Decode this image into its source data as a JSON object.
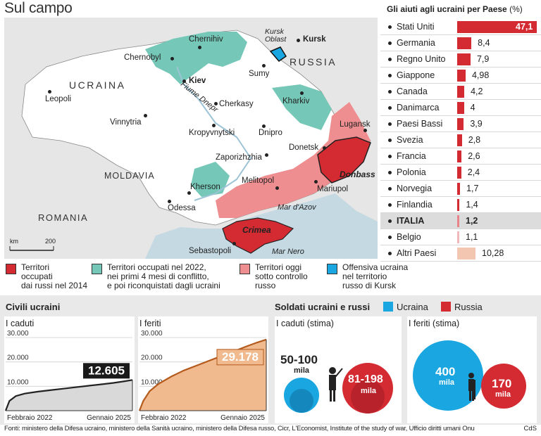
{
  "title": "Sul campo",
  "map": {
    "countries": {
      "ukraine": "UCRAINA",
      "russia": "RUSSIA",
      "moldova": "MOLDAVIA",
      "romania": "ROMANIA"
    },
    "cities": {
      "chernihiv": "Chernihiv",
      "chernobyl": "Chernobyl",
      "kiev": "Kiev",
      "sumy": "Sumy",
      "kursk": "Kursk",
      "kursk_oblast": "Kursk\nOblast",
      "kharkiv": "Kharkiv",
      "cherkasy": "Cherkasy",
      "leopoli": "Leopoli",
      "vinnytria": "Vinnytria",
      "kropyvnytski": "Kropyvnytski",
      "dnipro": "Dnipro",
      "donetsk": "Donetsk",
      "lugansk": "Lugansk",
      "zaporizhzhia": "Zaporizhzhia",
      "melitopol": "Melitopol",
      "mariupol": "Mariupol",
      "kherson": "Kherson",
      "odessa": "Odessa",
      "sebastopoli": "Sebastopoli"
    },
    "labels": {
      "dnepr": "Fiume Dnepr",
      "azov": "Mar d'Azov",
      "black_sea": "Mar Nero",
      "crimea": "Crimea",
      "donbass": "Donbass"
    },
    "scale": {
      "left": "km",
      "right": "200"
    },
    "colors": {
      "occupied_2014": "#d42b33",
      "occupied_2022": "#75c8b8",
      "controlled_now": "#ef8e90",
      "offensive": "#1aa6e0"
    }
  },
  "legend": [
    {
      "label": "Territori\noccupati\ndai russi nel 2014",
      "color": "#d42b33"
    },
    {
      "label": "Territori occupati nel 2022,\nnei primi 4 mesi di conflitto,\ne poi riconquistati dagli ucraini",
      "color": "#75c8b8"
    },
    {
      "label": "Territori oggi\nsotto controllo\nrusso",
      "color": "#ef8e90"
    },
    {
      "label": "Offensiva ucraina\nnel territorio\nrusso di Kursk",
      "color": "#1aa6e0"
    }
  ],
  "chart_data": [
    {
      "type": "bar",
      "title": "Gli aiuti agli ucraini per Paese",
      "unit": "(%)",
      "categories": [
        "Stati Uniti",
        "Germania",
        "Regno Unito",
        "Giappone",
        "Canada",
        "Danimarca",
        "Paesi Bassi",
        "Svezia",
        "Francia",
        "Polonia",
        "Norvegia",
        "Finlandia",
        "ITALIA",
        "Belgio",
        "Altri Paesi"
      ],
      "value_labels": [
        "47,1",
        "8,4",
        "7,9",
        "4,98",
        "4,2",
        "4",
        "3,9",
        "2,8",
        "2,6",
        "2,4",
        "1,7",
        "1,4",
        "1,2",
        "1,1",
        "10,28"
      ],
      "values": [
        47.1,
        8.4,
        7.9,
        4.98,
        4.2,
        4,
        3.9,
        2.8,
        2.6,
        2.4,
        1.7,
        1.4,
        1.2,
        1.1,
        10.28
      ],
      "colors": {
        "main": "#d42b33",
        "italia": "#e8838a",
        "belgio": "#f0b8bb",
        "altri": "#f2c6b0",
        "highlight_row": "#dcdcdc"
      }
    },
    {
      "type": "area",
      "section": "Civili ucraini",
      "title": "I caduti",
      "x_start": "Febbraio 2022",
      "x_end": "Gennaio 2025",
      "x_labels": [
        "Febbraio 2022",
        "Gennaio 2025"
      ],
      "y_ticks": [
        "30.000",
        "20.000",
        "10.000"
      ],
      "ylim": [
        0,
        30000
      ],
      "x": [
        0,
        0.03,
        0.08,
        0.15,
        0.25,
        0.35,
        0.45,
        0.55,
        0.65,
        0.75,
        0.85,
        0.93,
        1.0
      ],
      "values": [
        0,
        4000,
        6000,
        7000,
        7800,
        8400,
        9000,
        9600,
        10200,
        10800,
        11400,
        12000,
        12605
      ],
      "final_label": "12.605",
      "colors": {
        "line": "#222222",
        "fill": "#d9d9d9"
      }
    },
    {
      "type": "area",
      "section": "Civili ucraini",
      "title": "I feriti",
      "x_start": "Febbraio 2022",
      "x_end": "Gennaio 2025",
      "x_labels": [
        "Febbraio 2022",
        "Gennaio 2025"
      ],
      "y_ticks": [
        "30.000",
        "20.000",
        "10.000"
      ],
      "ylim": [
        0,
        30000
      ],
      "x": [
        0,
        0.03,
        0.08,
        0.15,
        0.25,
        0.35,
        0.45,
        0.55,
        0.65,
        0.75,
        0.85,
        0.93,
        1.0
      ],
      "values": [
        0,
        4000,
        8000,
        11000,
        14000,
        16500,
        18500,
        20500,
        22500,
        24500,
        26500,
        28000,
        29178
      ],
      "final_label": "29.178",
      "colors": {
        "line": "#b35a1c",
        "fill": "#f1b98e"
      }
    },
    {
      "type": "bubble",
      "section": "Soldati ucraini e russi",
      "legend": [
        {
          "name": "Ucraina",
          "color": "#1aa6e0"
        },
        {
          "name": "Russia",
          "color": "#d42b33"
        }
      ],
      "panels": [
        {
          "title": "I caduti (stima)",
          "ukraine_label": "50-100",
          "russia_label": "81-198",
          "unit": "mila",
          "ukraine_min": 50,
          "ukraine_max": 100,
          "russia_min": 81,
          "russia_max": 198
        },
        {
          "title": "I feriti (stima)",
          "ukraine_label": "400",
          "russia_label": "170",
          "unit": "mila",
          "ukraine": 400,
          "russia": 170
        }
      ]
    }
  ],
  "sources": "Fonti: ministero della Difesa ucraino, ministero della Sanità ucraino, ministero della Difesa russo, Cicr, L'Economist, Institute of the study of war, Ufficio diritti umani Onu",
  "credit": "CdS"
}
